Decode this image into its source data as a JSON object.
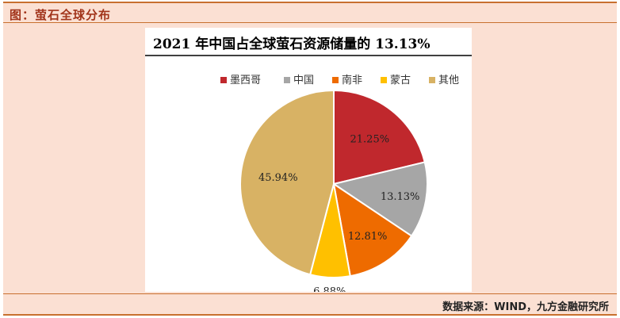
{
  "header": {
    "title": "图：萤石全球分布"
  },
  "footer": {
    "source": "数据来源：WIND，九方金融研究所"
  },
  "chart_data": {
    "type": "pie",
    "title": "2021 年中国占全球萤石资源储量的 13.13%",
    "legend_position": "top",
    "slices": [
      {
        "name": "墨西哥",
        "value": 21.25,
        "label": "21.25%",
        "color": "#c0282d"
      },
      {
        "name": "中国",
        "value": 13.13,
        "label": "13.13%",
        "color": "#a6a6a6"
      },
      {
        "name": "南非",
        "value": 12.81,
        "label": "12.81%",
        "color": "#ee6b00"
      },
      {
        "name": "蒙古",
        "value": 6.88,
        "label": "6.88%",
        "color": "#ffc000"
      },
      {
        "name": "其他",
        "value": 45.94,
        "label": "45.94%",
        "color": "#d8b264"
      }
    ]
  }
}
